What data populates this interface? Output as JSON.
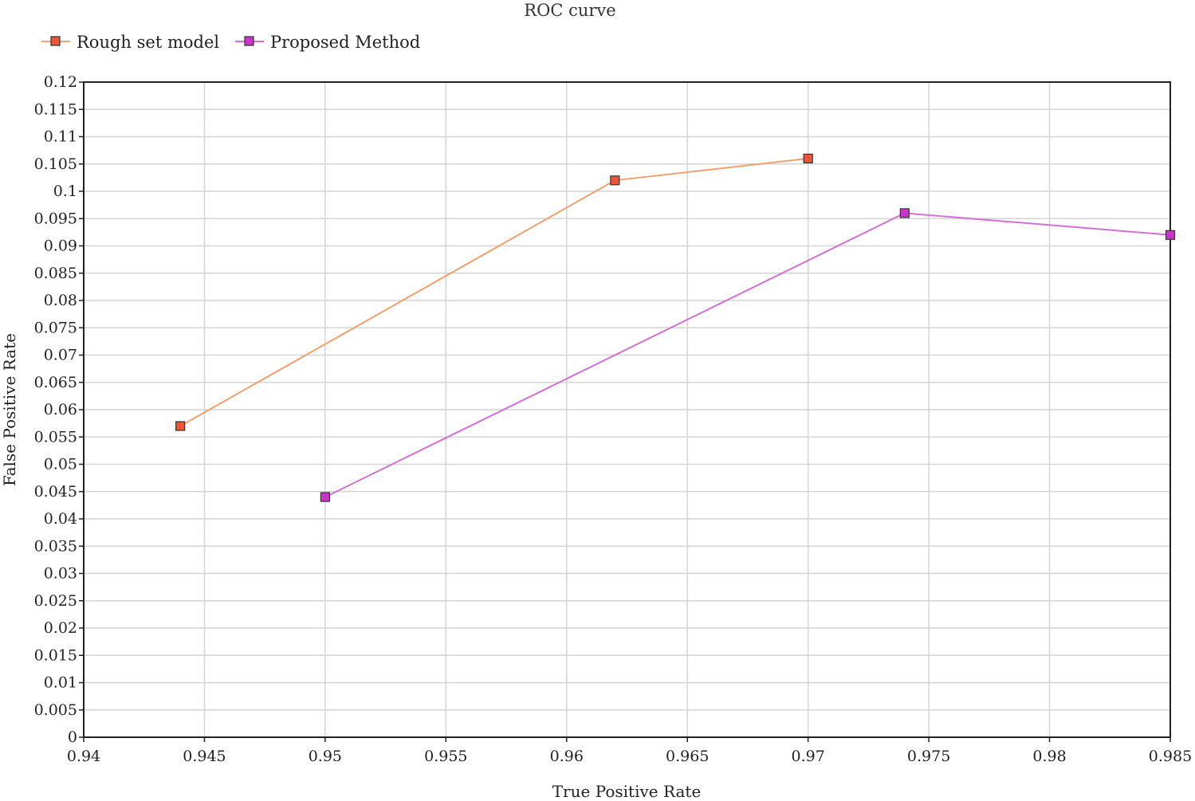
{
  "chart_data": {
    "type": "line",
    "title": "ROC curve",
    "xlabel": "True Positive Rate",
    "ylabel": "False Positive Rate",
    "xlim": [
      0.94,
      0.985
    ],
    "ylim": [
      0,
      0.12
    ],
    "x_ticks": [
      "0.94",
      "0.945",
      "0.95",
      "0.955",
      "0.96",
      "0.965",
      "0.97",
      "0.975",
      "0.98",
      "0.985"
    ],
    "y_ticks": [
      "0",
      "0.005",
      "0.01",
      "0.015",
      "0.02",
      "0.025",
      "0.03",
      "0.035",
      "0.04",
      "0.045",
      "0.05",
      "0.055",
      "0.06",
      "0.065",
      "0.07",
      "0.075",
      "0.08",
      "0.085",
      "0.09",
      "0.095",
      "0.1",
      "0.105",
      "0.11",
      "0.115",
      "0.12"
    ],
    "grid": true,
    "legend_position": "top-left",
    "series": [
      {
        "name": "Rough set model",
        "color": "#f0a070",
        "marker_color": "#ee5533",
        "marker": "square",
        "points": [
          [
            0.944,
            0.057
          ],
          [
            0.962,
            0.102
          ],
          [
            0.97,
            0.106
          ]
        ]
      },
      {
        "name": "Proposed Method",
        "color": "#d070d0",
        "marker_color": "#cc33cc",
        "marker": "square",
        "points": [
          [
            0.95,
            0.044
          ],
          [
            0.974,
            0.096
          ],
          [
            0.985,
            0.092
          ]
        ]
      }
    ]
  }
}
